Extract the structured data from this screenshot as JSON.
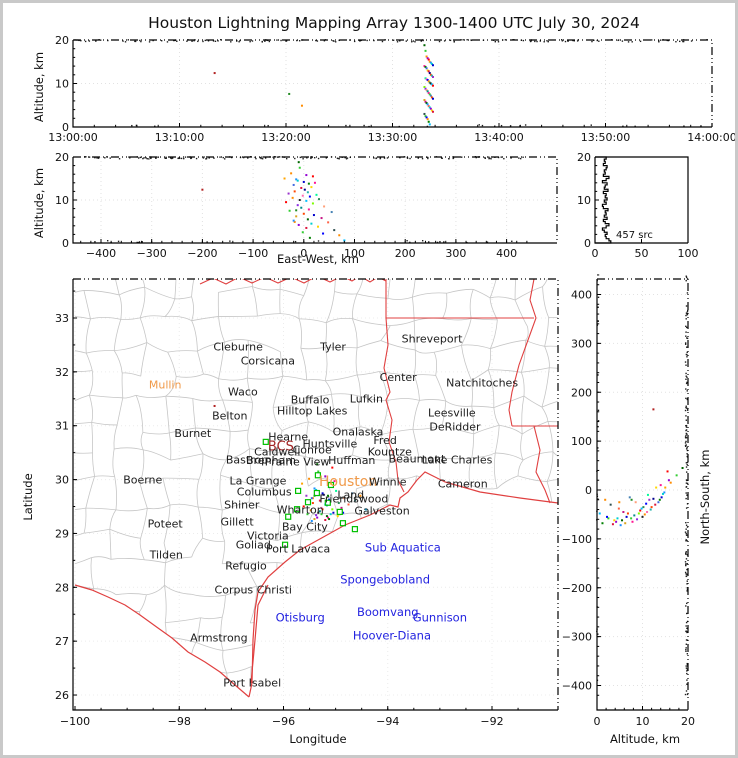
{
  "title": "Houston Lightning Mapping Array 1300-1400 UTC July 30, 2024",
  "axes": {
    "altitude_label": "Altitude, km",
    "eastwest_label": "East-West, km",
    "longitude_label": "Longitude",
    "latitude_label": "Latitude",
    "northsouth_label": "North-South, km",
    "source_count_label": "457 src"
  },
  "colors": {
    "county_line": "#c6c6c6",
    "state_border": "#e04040",
    "station_marker": "#00c000",
    "grid_line": "#e2e2e2",
    "frame": "#000000",
    "label_black": "#1c1c1c",
    "label_orange": "#f09a4a",
    "label_blue": "#2323e0",
    "label_bcs": "#a22525"
  },
  "chart_data": {
    "type": "scatter",
    "panels": {
      "time_altitude": {
        "ylabel": "Altitude, km",
        "ylim": [
          0,
          20
        ],
        "yticks": [
          0,
          10,
          20
        ],
        "xticks": [
          "13:00:00",
          "13:10:00",
          "13:20:00",
          "13:30:00",
          "13:40:00",
          "13:50:00",
          "14:00:00"
        ],
        "xlim_minutes": [
          0,
          60
        ],
        "grid": true
      },
      "eastwest_altitude": {
        "xlabel": "East-West, km",
        "ylabel": "Altitude, km",
        "xlim": [
          -455,
          455
        ],
        "xticks": [
          -400,
          -300,
          -200,
          -100,
          0,
          100,
          200,
          300,
          400
        ],
        "ylim": [
          0,
          20
        ],
        "yticks": [
          0,
          10,
          20
        ],
        "grid": true
      },
      "altitude_histogram": {
        "xlim": [
          0,
          100
        ],
        "xticks": [
          0,
          50,
          100
        ],
        "ylim": [
          0,
          20
        ],
        "yticks": [
          0,
          10,
          20
        ],
        "annotation": "457 src",
        "bin_km": 0.5,
        "counts": [
          17,
          15,
          12,
          11,
          13,
          10,
          8,
          12,
          15,
          11,
          9,
          13,
          10,
          12,
          11,
          14,
          9,
          8,
          12,
          10,
          13,
          11,
          12,
          9,
          14,
          10,
          11,
          13,
          8,
          12,
          15,
          9,
          11,
          10,
          12,
          13,
          9,
          11,
          10,
          12
        ]
      },
      "map": {
        "xlabel": "Longitude",
        "ylabel": "Latitude",
        "xlim": [
          -100.04,
          -90.77
        ],
        "xticks": [
          -100,
          -98,
          -96,
          -94,
          -92
        ],
        "ylim": [
          25.72,
          33.72
        ],
        "yticks": [
          26,
          27,
          28,
          29,
          30,
          31,
          32,
          33
        ],
        "grid": true
      },
      "northsouth_altitude": {
        "xlabel": "Altitude, km",
        "ylabel": "North-South, km",
        "xlim": [
          0,
          20
        ],
        "xticks": [
          0,
          10,
          20
        ],
        "ylim": [
          -432,
          450
        ],
        "yticks": [
          -400,
          -300,
          -200,
          -100,
          0,
          100,
          200,
          300,
          400
        ],
        "grid": true
      }
    },
    "sources_format": [
      "minutes_after_1300",
      "east_west_km",
      "north_south_km",
      "altitude_km",
      "color"
    ],
    "sources": [
      [
        13.3,
        -200,
        165,
        12.4,
        "#b22222"
      ],
      [
        20.3,
        -15,
        -20,
        7.6,
        "#228b22"
      ],
      [
        21.5,
        -18,
        -25,
        4.9,
        "#ff8c00"
      ],
      [
        33.0,
        -10,
        45,
        18.8,
        "#006400"
      ],
      [
        33.1,
        -8,
        30,
        17.5,
        "#32cd32"
      ],
      [
        33.2,
        -25,
        15,
        16.2,
        "#ff8c00"
      ],
      [
        33.3,
        5,
        20,
        15.8,
        "#9400d3"
      ],
      [
        33.4,
        18,
        38,
        15.5,
        "#ff0000"
      ],
      [
        33.5,
        -38,
        5,
        15.0,
        "#ffa500"
      ],
      [
        33.6,
        -15,
        -5,
        14.8,
        "#1e90ff"
      ],
      [
        33.7,
        -12,
        -8,
        14.5,
        "#00ced1"
      ],
      [
        33.8,
        0,
        -15,
        14.2,
        "#0000cd"
      ],
      [
        33.0,
        22,
        10,
        14.0,
        "#ff1493"
      ],
      [
        33.1,
        10,
        -20,
        13.8,
        "#008000"
      ],
      [
        33.2,
        -20,
        -25,
        13.5,
        "#4169e1"
      ],
      [
        33.3,
        15,
        5,
        13.0,
        "#ffd700"
      ],
      [
        33.4,
        -5,
        -30,
        12.8,
        "#dc143c"
      ],
      [
        33.5,
        2,
        -18,
        12.4,
        "#00008b"
      ],
      [
        33.6,
        -18,
        -35,
        12.0,
        "#ff4500"
      ],
      [
        33.7,
        8,
        -40,
        11.8,
        "#20b2aa"
      ],
      [
        33.8,
        -30,
        -20,
        11.5,
        "#9932cc"
      ],
      [
        33.1,
        25,
        -10,
        11.2,
        "#00fa9a"
      ],
      [
        33.2,
        -2,
        -45,
        11.0,
        "#ff69b4"
      ],
      [
        33.3,
        12,
        -28,
        10.8,
        "#0000ff"
      ],
      [
        33.4,
        -22,
        -50,
        10.5,
        "#ff8c00"
      ],
      [
        33.5,
        30,
        -35,
        10.2,
        "#2e8b57"
      ],
      [
        33.6,
        -8,
        -55,
        10.0,
        "#222222"
      ],
      [
        33.7,
        5,
        -38,
        9.8,
        "#00bfff"
      ],
      [
        33.8,
        -35,
        -42,
        9.5,
        "#ff0000"
      ],
      [
        33.0,
        18,
        -48,
        9.2,
        "#7cfc00"
      ],
      [
        33.1,
        -12,
        -60,
        8.8,
        "#8a2be2"
      ],
      [
        33.2,
        40,
        -25,
        8.5,
        "#ffa07a"
      ],
      [
        33.3,
        -5,
        -52,
        8.2,
        "#008b8b"
      ],
      [
        33.4,
        10,
        -65,
        7.8,
        "#ff1493"
      ],
      [
        33.5,
        -28,
        -58,
        7.5,
        "#32cd32"
      ],
      [
        33.6,
        55,
        -15,
        7.2,
        "#4682b4"
      ],
      [
        33.7,
        0,
        -48,
        6.8,
        "#ff4500"
      ],
      [
        33.8,
        20,
        -55,
        6.5,
        "#0000cd"
      ],
      [
        33.0,
        -15,
        -68,
        6.2,
        "#daa520"
      ],
      [
        33.1,
        35,
        -45,
        5.8,
        "#c71585"
      ],
      [
        33.2,
        8,
        -62,
        5.5,
        "#006400"
      ],
      [
        33.3,
        -20,
        -72,
        5.2,
        "#1e90ff"
      ],
      [
        33.4,
        48,
        -38,
        4.8,
        "#ff6347"
      ],
      [
        33.5,
        15,
        -58,
        4.5,
        "#00ced1"
      ],
      [
        33.6,
        -10,
        -65,
        4.2,
        "#9400d3"
      ],
      [
        33.7,
        28,
        -62,
        3.8,
        "#ffd700"
      ],
      [
        33.8,
        5,
        -70,
        3.5,
        "#dc143c"
      ],
      [
        33.0,
        60,
        -30,
        3.0,
        "#2f4f4f"
      ],
      [
        33.1,
        -2,
        -58,
        2.5,
        "#32cd32"
      ],
      [
        33.2,
        38,
        -55,
        2.2,
        "#0000ff"
      ],
      [
        33.3,
        70,
        -20,
        1.8,
        "#ff8c00"
      ],
      [
        33.4,
        12,
        -68,
        1.2,
        "#008000"
      ],
      [
        33.5,
        80,
        -48,
        0.6,
        "#00bfff"
      ]
    ],
    "edge_noise": {
      "alt_top_km": 20,
      "alt_bottom_km": 0,
      "top_count": 150,
      "bottom_count": 22
    },
    "stations": [
      [
        -96.34,
        30.7
      ],
      [
        -95.34,
        30.08
      ],
      [
        -95.09,
        29.9
      ],
      [
        -95.72,
        29.79
      ],
      [
        -95.36,
        29.75
      ],
      [
        -95.53,
        29.58
      ],
      [
        -95.15,
        29.57
      ],
      [
        -95.74,
        29.45
      ],
      [
        -94.92,
        29.4
      ],
      [
        -95.91,
        29.31
      ],
      [
        -94.86,
        29.19
      ],
      [
        -94.63,
        29.08
      ],
      [
        -95.97,
        28.79
      ]
    ],
    "map_labels": [
      [
        "Cleburne",
        -96.87,
        32.46,
        0
      ],
      [
        "Tyler",
        -95.05,
        32.46,
        0
      ],
      [
        "Corsicana",
        -96.3,
        32.2,
        0
      ],
      [
        "Shreveport",
        -93.15,
        32.61,
        0
      ],
      [
        "Center",
        -93.8,
        31.9,
        0
      ],
      [
        "Natchitoches",
        -92.19,
        31.79,
        0
      ],
      [
        "Mullin",
        -98.27,
        31.76,
        1
      ],
      [
        "Waco",
        -96.78,
        31.63,
        0
      ],
      [
        "Buffalo",
        -95.49,
        31.48,
        0
      ],
      [
        "Lufkin",
        -94.41,
        31.5,
        0
      ],
      [
        "Belton",
        -97.03,
        31.18,
        0
      ],
      [
        "Hilltop Lakes",
        -95.45,
        31.27,
        0
      ],
      [
        "Leesville",
        -92.77,
        31.24,
        0
      ],
      [
        "DeRidder",
        -92.71,
        30.98,
        0
      ],
      [
        "Burnet",
        -97.74,
        30.86,
        0
      ],
      [
        "Hearne",
        -95.91,
        30.79,
        0
      ],
      [
        "BCS",
        -96.05,
        30.62,
        3
      ],
      [
        "Caldwell",
        -96.12,
        30.51,
        0
      ],
      [
        "Huntsville",
        -95.11,
        30.66,
        0
      ],
      [
        "Onalaska",
        -94.57,
        30.88,
        0
      ],
      [
        "Fred",
        -94.05,
        30.73,
        0
      ],
      [
        "Kountze",
        -93.96,
        30.51,
        0
      ],
      [
        "Lake Charles",
        -92.67,
        30.36,
        0
      ],
      [
        "Conroe",
        -95.45,
        30.55,
        0
      ],
      [
        "Bastrop",
        -96.7,
        30.36,
        0
      ],
      [
        "Brenham",
        -96.24,
        30.35,
        0
      ],
      [
        "Prairie View",
        -95.74,
        30.33,
        0
      ],
      [
        "Huffman",
        -94.69,
        30.35,
        0
      ],
      [
        "Beaumont",
        -93.44,
        30.38,
        0
      ],
      [
        "Boerne",
        -98.7,
        29.99,
        0
      ],
      [
        "La Grange",
        -96.49,
        29.97,
        0
      ],
      [
        "Columbus",
        -96.37,
        29.77,
        0
      ],
      [
        "Houston",
        -94.76,
        29.96,
        4
      ],
      [
        "Winnie",
        -94.0,
        29.96,
        0
      ],
      [
        "Cameron",
        -92.56,
        29.92,
        0
      ],
      [
        "Land",
        -94.71,
        29.71,
        0
      ],
      [
        "Friendswood",
        -94.65,
        29.64,
        0
      ],
      [
        "Galveston",
        -94.11,
        29.42,
        0
      ],
      [
        "Wharton",
        -95.68,
        29.44,
        0
      ],
      [
        "Shiner",
        -96.8,
        29.53,
        0
      ],
      [
        "Gillett",
        -96.89,
        29.21,
        0
      ],
      [
        "Bay City",
        -95.59,
        29.12,
        0
      ],
      [
        "Poteet",
        -98.27,
        29.18,
        0
      ],
      [
        "Victoria",
        -96.3,
        28.95,
        0
      ],
      [
        "Goliad",
        -96.58,
        28.79,
        0
      ],
      [
        "Port Lavaca",
        -95.72,
        28.71,
        0
      ],
      [
        "Tilden",
        -98.25,
        28.6,
        0
      ],
      [
        "Refugio",
        -96.72,
        28.4,
        0
      ],
      [
        "Corpus Christi",
        -96.58,
        27.95,
        0
      ],
      [
        "Otisburg",
        -95.68,
        27.43,
        2
      ],
      [
        "Armstrong",
        -97.24,
        27.06,
        0
      ],
      [
        "Port Isabel",
        -96.6,
        26.22,
        0
      ],
      [
        "Sub Aquatica",
        -93.71,
        28.73,
        2
      ],
      [
        "Spongebobland",
        -94.05,
        28.14,
        2
      ],
      [
        "Boomvang",
        -94.0,
        27.54,
        2
      ],
      [
        "Gunnison",
        -93.0,
        27.43,
        2
      ],
      [
        "Hoover-Diana",
        -93.92,
        27.1,
        2
      ]
    ]
  }
}
